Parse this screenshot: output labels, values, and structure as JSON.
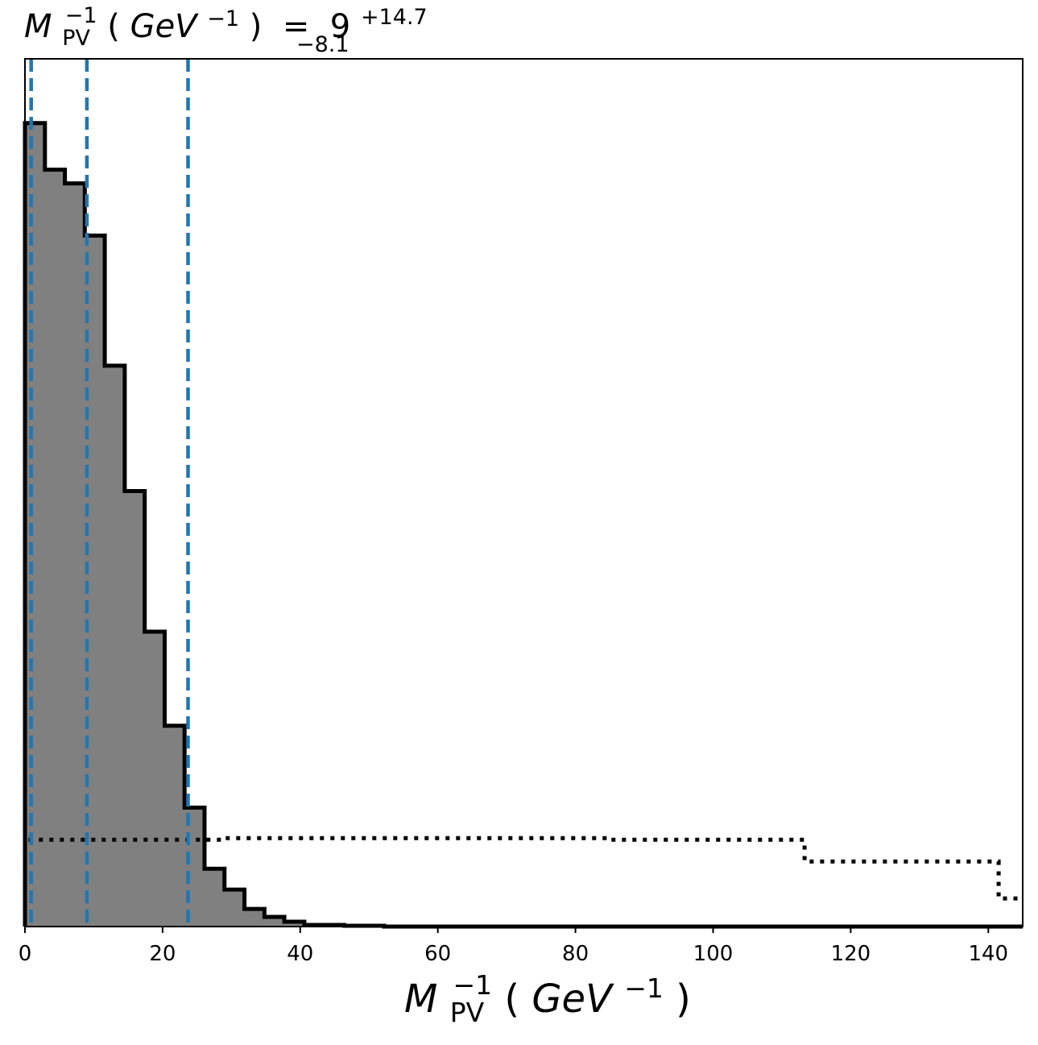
{
  "chart_data": {
    "type": "histogram",
    "title": {
      "var_main": "M",
      "var_sub": "PV",
      "var_sup": "−1",
      "unit_open": "(",
      "unit_main": "GeV",
      "unit_sup": "−1",
      "unit_close": ")",
      "equals": " = ",
      "value": "9",
      "err_plus": "+14.7",
      "err_minus": "−8.1"
    },
    "xlabel": {
      "var_main": "M",
      "var_sub": "PV",
      "var_sup": "−1",
      "unit_open": "(",
      "unit_main": "GeV",
      "unit_sup": "−1",
      "unit_close": ")"
    },
    "xlim": [
      0,
      145
    ],
    "ylim": [
      0,
      1.08
    ],
    "x_ticks": [
      0,
      20,
      40,
      60,
      80,
      100,
      120,
      140
    ],
    "x_tick_labels": [
      "0",
      "20",
      "40",
      "60",
      "80",
      "100",
      "120",
      "140"
    ],
    "y_ticks_visible": false,
    "grid": false,
    "legend": "none",
    "posterior_histogram": {
      "style": "filled step",
      "fill_color": "#808080",
      "edge_color": "#000000",
      "bin_edges": [
        0,
        2.9,
        5.8,
        8.7,
        11.6,
        14.5,
        17.4,
        20.3,
        23.2,
        26.1,
        29.0,
        31.9,
        34.8,
        37.7,
        40.6,
        43.5,
        46.4,
        49.3,
        52.2,
        55.1,
        58.0,
        145
      ],
      "counts": [
        1.0,
        0.942,
        0.925,
        0.86,
        0.698,
        0.542,
        0.367,
        0.25,
        0.148,
        0.072,
        0.046,
        0.022,
        0.012,
        0.006,
        0.002,
        0.002,
        0.001,
        0.001,
        0.0,
        0.0,
        0.0
      ]
    },
    "prior_histogram": {
      "style": "dotted step",
      "edge_color": "#000000",
      "bin_edges": [
        0.5,
        28.7,
        85.1,
        113.3,
        141.5,
        145
      ],
      "counts": [
        0.108,
        0.11,
        0.108,
        0.081,
        0.035
      ]
    },
    "vertical_lines": {
      "style": "dashed",
      "color": "#1f77b4",
      "values": [
        0.9,
        9.0,
        23.7
      ]
    }
  }
}
